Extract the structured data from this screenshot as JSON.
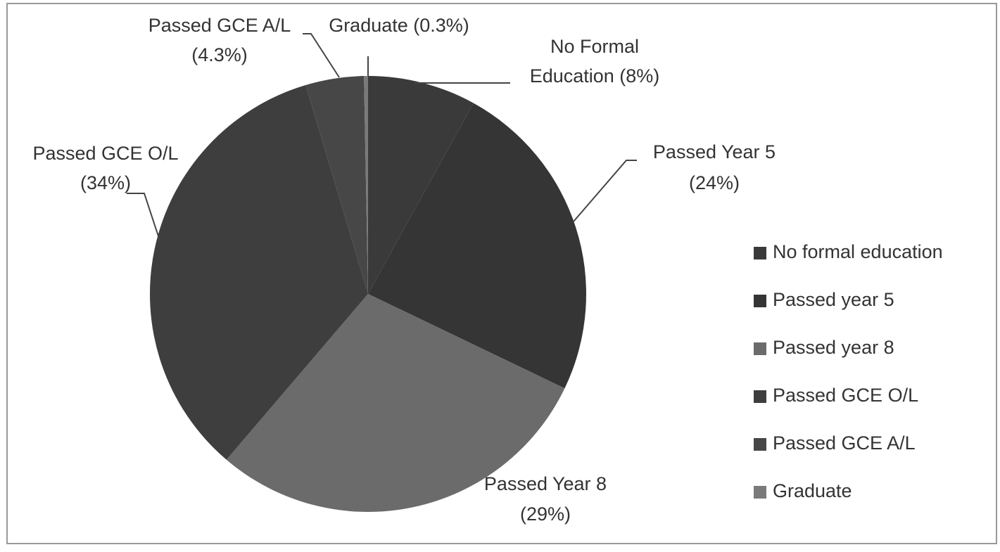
{
  "chart_data": {
    "type": "pie",
    "categories": [
      "No formal education",
      "Passed year 5",
      "Passed year 8",
      "Passed GCE O/L",
      "Passed GCE A/L",
      "Graduate"
    ],
    "values": [
      8,
      24,
      29,
      34,
      4.3,
      0.3
    ],
    "value_labels": [
      [
        "No Formal",
        "Education (8%)"
      ],
      [
        "Passed Year 5",
        "(24%)"
      ],
      [
        "Passed Year 8",
        "(29%)"
      ],
      [
        "Passed GCE O/L",
        "(34%)"
      ],
      [
        "Passed GCE A/L",
        "(4.3%)"
      ],
      [
        "Graduate (0.3%)"
      ]
    ],
    "colors": [
      "#3a3a3a",
      "#353535",
      "#6b6b6b",
      "#3e3e3e",
      "#474747",
      "#7a7a7a"
    ],
    "legend": "right"
  }
}
